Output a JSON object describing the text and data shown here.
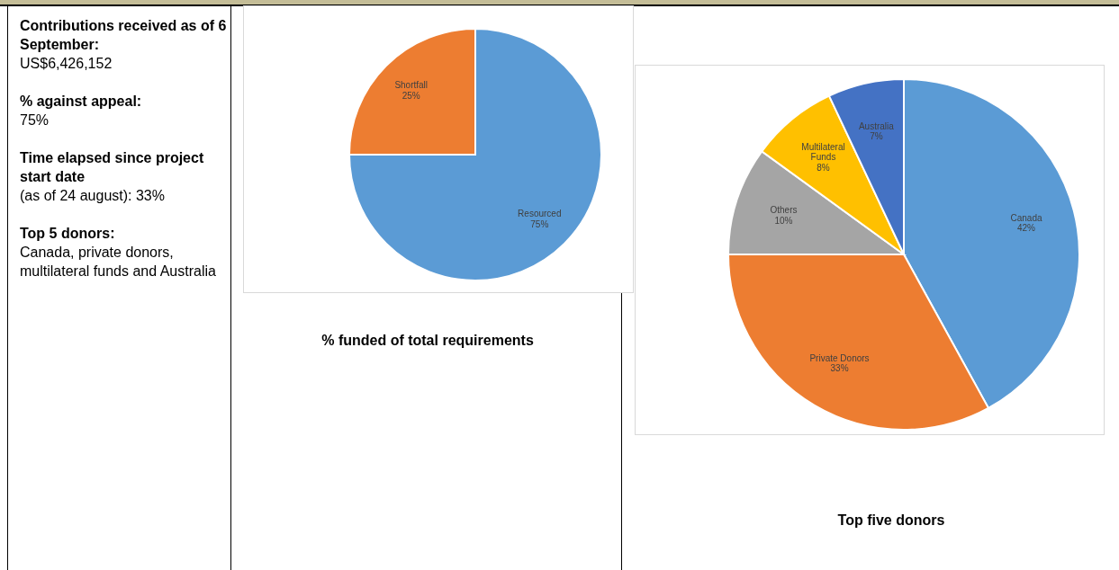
{
  "chart_data": [
    {
      "type": "other",
      "annotations": [
        "Contributions received as of 6 September:",
        "US$6,426,152",
        "% against appeal:",
        "75%",
        "Time elapsed since project start date",
        "(as of 24 august): 33%",
        "Top 5 donors:",
        "Canada, private donors, multilateral funds and Australia"
      ]
    },
    {
      "type": "pie",
      "title": "% funded of total requirements",
      "categories": [
        "Resourced",
        "Shortfall"
      ],
      "values": [
        75,
        25
      ],
      "colors": [
        "#5b9bd5",
        "#ed7d31"
      ],
      "value_labels": [
        "75%",
        "25%"
      ]
    },
    {
      "type": "pie",
      "title": "Top five donors",
      "categories": [
        "Canada",
        "Private Donors",
        "Others",
        "Multilateral Funds",
        "Australia"
      ],
      "values": [
        42,
        33,
        10,
        8,
        7
      ],
      "colors": [
        "#5b9bd5",
        "#ed7d31",
        "#a5a5a5",
        "#ffc000",
        "#4472c4"
      ],
      "value_labels": [
        "42%",
        "33%",
        "10%",
        "8%",
        "7%"
      ]
    }
  ]
}
